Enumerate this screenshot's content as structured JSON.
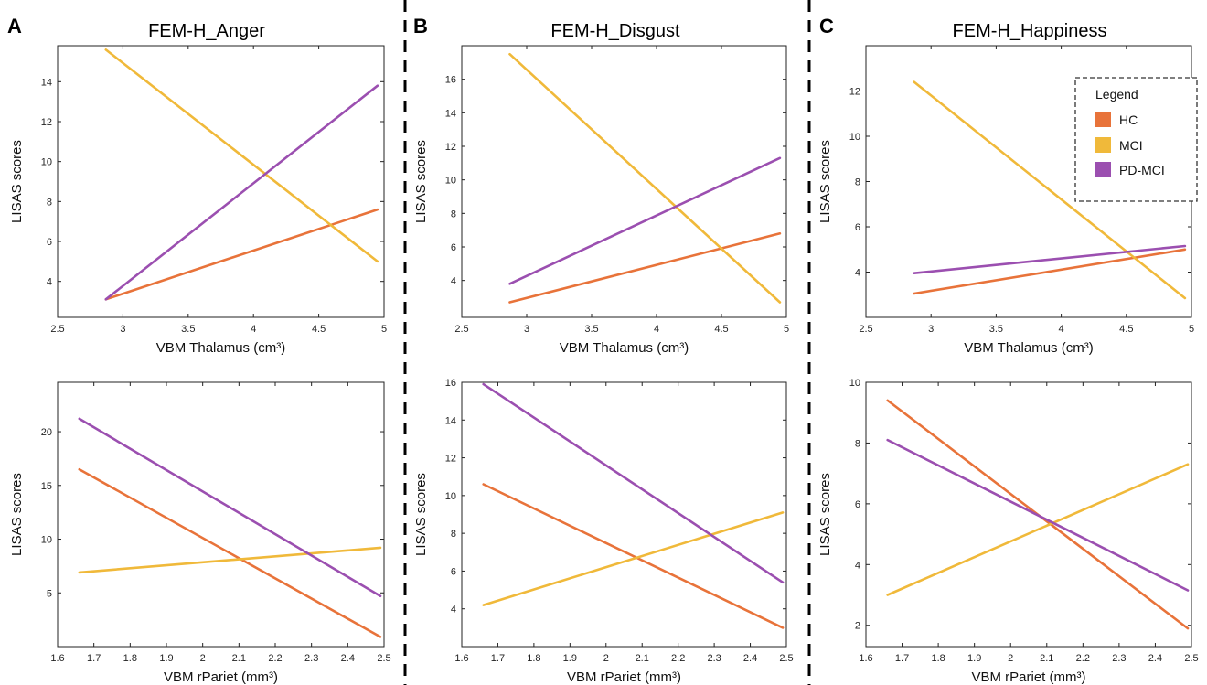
{
  "colors": {
    "HC": "#e8733a",
    "MCI": "#f0b93a",
    "PD-MCI": "#9b4fb0"
  },
  "panels": [
    {
      "letter": "A",
      "title": "FEM-H_Anger"
    },
    {
      "letter": "B",
      "title": "FEM-H_Disgust"
    },
    {
      "letter": "C",
      "title": "FEM-H_Happiness"
    }
  ],
  "legend": {
    "title": "Legend",
    "entries": [
      {
        "label": "HC",
        "color": "#e8733a"
      },
      {
        "label": "MCI",
        "color": "#f0b93a"
      },
      {
        "label": "PD-MCI",
        "color": "#9b4fb0"
      }
    ]
  },
  "chart_data": [
    {
      "type": "line",
      "panel": "A",
      "title": "FEM-H_Anger",
      "xlabel": "VBM Thalamus (cm³)",
      "ylabel": "LISAS scores",
      "xlim": [
        2.5,
        5
      ],
      "ylim": [
        2.2,
        15.8
      ],
      "xticks": [
        2.5,
        3,
        3.5,
        4,
        4.5,
        5
      ],
      "xtick_labels": [
        "2.5",
        "3",
        "3.5",
        "4",
        "4.5",
        "5"
      ],
      "yticks": [
        4,
        6,
        8,
        10,
        12,
        14
      ],
      "series": [
        {
          "name": "HC",
          "x": [
            2.87,
            4.95
          ],
          "y": [
            3.1,
            7.6
          ]
        },
        {
          "name": "MCI",
          "x": [
            2.87,
            4.95
          ],
          "y": [
            15.6,
            5.0
          ]
        },
        {
          "name": "PD-MCI",
          "x": [
            2.87,
            4.95
          ],
          "y": [
            3.1,
            13.8
          ]
        }
      ]
    },
    {
      "type": "line",
      "panel": "B",
      "title": "FEM-H_Disgust",
      "xlabel": "VBM Thalamus (cm³)",
      "ylabel": "LISAS scores",
      "xlim": [
        2.5,
        5
      ],
      "ylim": [
        1.8,
        18.0
      ],
      "xticks": [
        2.5,
        3,
        3.5,
        4,
        4.5,
        5
      ],
      "xtick_labels": [
        "2.5",
        "3",
        "3.5",
        "4",
        "4.5",
        "5"
      ],
      "yticks": [
        4,
        6,
        8,
        10,
        12,
        14,
        16
      ],
      "series": [
        {
          "name": "HC",
          "x": [
            2.87,
            4.95
          ],
          "y": [
            2.7,
            6.8
          ]
        },
        {
          "name": "MCI",
          "x": [
            2.87,
            4.95
          ],
          "y": [
            17.5,
            2.7
          ]
        },
        {
          "name": "PD-MCI",
          "x": [
            2.87,
            4.95
          ],
          "y": [
            3.8,
            11.3
          ]
        }
      ]
    },
    {
      "type": "line",
      "panel": "C",
      "title": "FEM-H_Happiness",
      "xlabel": "VBM Thalamus (cm³)",
      "ylabel": "LISAS scores",
      "xlim": [
        2.5,
        5
      ],
      "ylim": [
        2.0,
        14.0
      ],
      "xticks": [
        2.5,
        3,
        3.5,
        4,
        4.5,
        5
      ],
      "xtick_labels": [
        "2.5",
        "3",
        "3.5",
        "4",
        "4.5",
        "5"
      ],
      "yticks": [
        4,
        6,
        8,
        10,
        12
      ],
      "series": [
        {
          "name": "HC",
          "x": [
            2.87,
            4.95
          ],
          "y": [
            3.05,
            5.0
          ]
        },
        {
          "name": "MCI",
          "x": [
            2.87,
            4.95
          ],
          "y": [
            12.4,
            2.85
          ]
        },
        {
          "name": "PD-MCI",
          "x": [
            2.87,
            4.95
          ],
          "y": [
            3.95,
            5.15
          ]
        }
      ]
    },
    {
      "type": "line",
      "panel": "A",
      "title": "",
      "xlabel": "VBM rPariet (mm³)",
      "ylabel": "LISAS scores",
      "xlim": [
        1.6,
        2.5
      ],
      "ylim": [
        0,
        24.6
      ],
      "xticks": [
        1.6,
        1.7,
        1.8,
        1.9,
        2,
        2.1,
        2.2,
        2.3,
        2.4,
        2.5
      ],
      "xtick_labels": [
        "1.6",
        "1.7",
        "1.8",
        "1.9",
        "2",
        "2.1",
        "2.2",
        "2.3",
        "2.4",
        "2.5"
      ],
      "yticks": [
        5,
        10,
        15,
        20
      ],
      "series": [
        {
          "name": "HC",
          "x": [
            1.66,
            2.49
          ],
          "y": [
            16.5,
            0.9
          ]
        },
        {
          "name": "MCI",
          "x": [
            1.66,
            2.49
          ],
          "y": [
            6.9,
            9.2
          ]
        },
        {
          "name": "PD-MCI",
          "x": [
            1.66,
            2.49
          ],
          "y": [
            21.2,
            4.7
          ]
        }
      ]
    },
    {
      "type": "line",
      "panel": "B",
      "title": "",
      "xlabel": "VBM rPariet (mm³)",
      "ylabel": "LISAS scores",
      "xlim": [
        1.6,
        2.5
      ],
      "ylim": [
        2.0,
        16.0
      ],
      "xticks": [
        1.6,
        1.7,
        1.8,
        1.9,
        2,
        2.1,
        2.2,
        2.3,
        2.4,
        2.5
      ],
      "xtick_labels": [
        "1.6",
        "1.7",
        "1.8",
        "1.9",
        "2",
        "2.1",
        "2.2",
        "2.3",
        "2.4",
        "2.5"
      ],
      "yticks": [
        4,
        6,
        8,
        10,
        12,
        14,
        16
      ],
      "series": [
        {
          "name": "HC",
          "x": [
            1.66,
            2.49
          ],
          "y": [
            10.6,
            3.0
          ]
        },
        {
          "name": "MCI",
          "x": [
            1.66,
            2.49
          ],
          "y": [
            4.2,
            9.1
          ]
        },
        {
          "name": "PD-MCI",
          "x": [
            1.66,
            2.49
          ],
          "y": [
            15.9,
            5.4
          ]
        }
      ]
    },
    {
      "type": "line",
      "panel": "C",
      "title": "",
      "xlabel": "VBM rPariet (mm³)",
      "ylabel": "LISAS scores",
      "xlim": [
        1.6,
        2.5
      ],
      "ylim": [
        1.3,
        10.0
      ],
      "xticks": [
        1.6,
        1.7,
        1.8,
        1.9,
        2,
        2.1,
        2.2,
        2.3,
        2.4,
        2.5
      ],
      "xtick_labels": [
        "1.6",
        "1.7",
        "1.8",
        "1.9",
        "2",
        "2.1",
        "2.2",
        "2.3",
        "2.4",
        "2.5"
      ],
      "yticks": [
        2,
        4,
        6,
        8,
        10
      ],
      "series": [
        {
          "name": "HC",
          "x": [
            1.66,
            2.49
          ],
          "y": [
            9.4,
            1.9
          ]
        },
        {
          "name": "MCI",
          "x": [
            1.66,
            2.49
          ],
          "y": [
            3.0,
            7.3
          ]
        },
        {
          "name": "PD-MCI",
          "x": [
            1.66,
            2.49
          ],
          "y": [
            8.1,
            3.15
          ]
        }
      ]
    }
  ]
}
